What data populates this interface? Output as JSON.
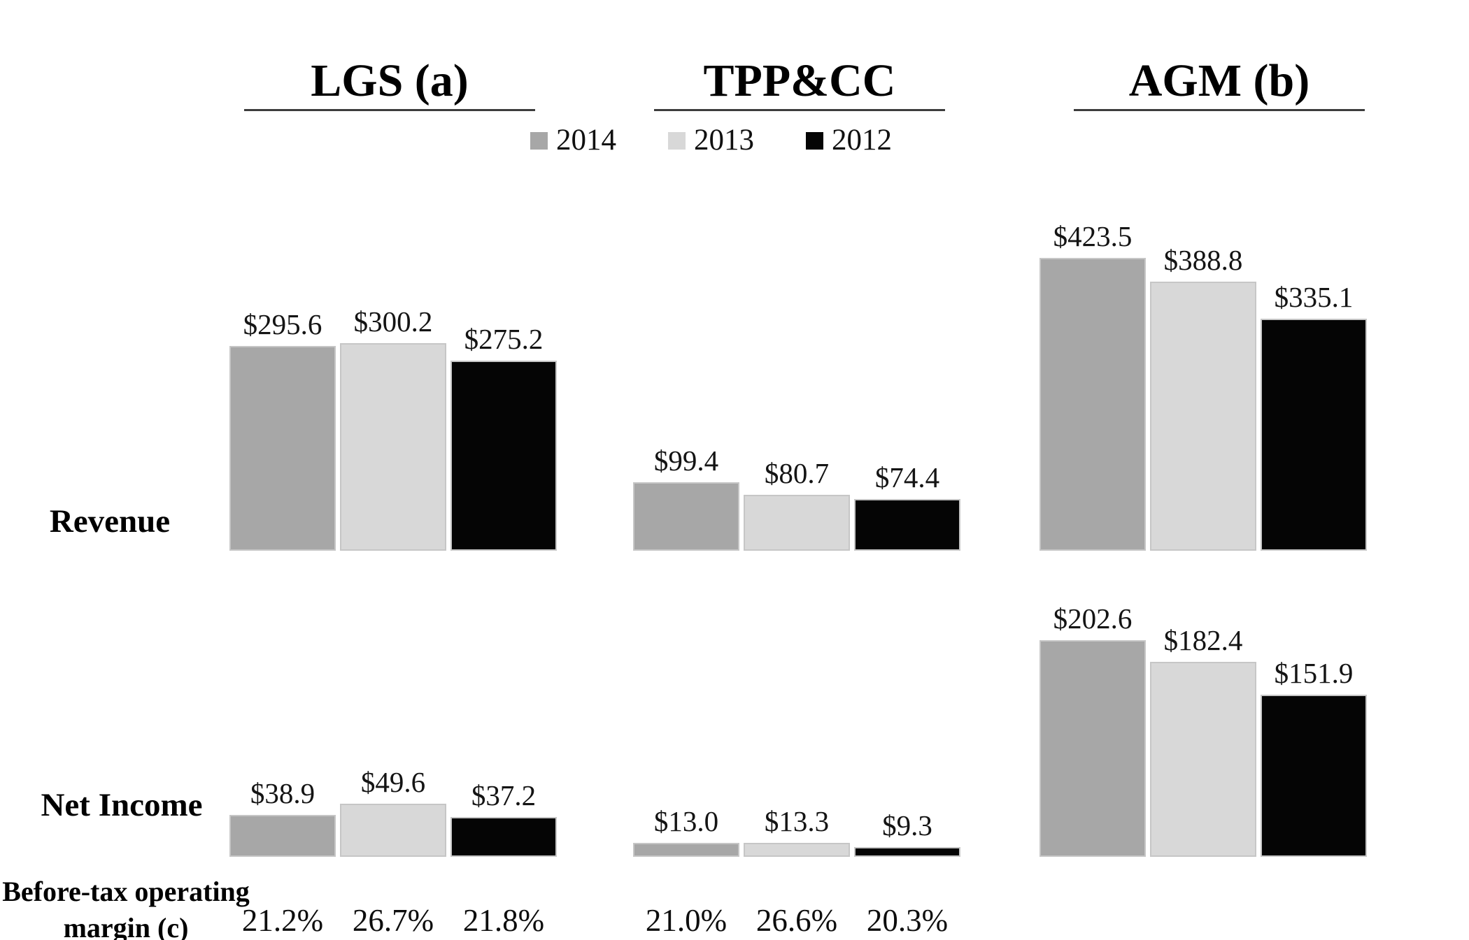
{
  "legend": {
    "items": [
      {
        "label": "2014",
        "color": "#a7a7a7"
      },
      {
        "label": "2013",
        "color": "#d8d8d8"
      },
      {
        "label": "2012",
        "color": "#050505"
      }
    ]
  },
  "row_labels": {
    "revenue": "Revenue",
    "net_income": "Net Income",
    "margin_line1": "Before-tax operating",
    "margin_line2": "margin (c)"
  },
  "chart_data": {
    "type": "bar",
    "title": "",
    "legend_position": "top-center",
    "series": [
      "2014",
      "2013",
      "2012"
    ],
    "series_colors": [
      "#a7a7a7",
      "#d8d8d8",
      "#050505"
    ],
    "series_border_colors": [
      "#c6c6c6",
      "#c6c6c6",
      "#c6c6c6"
    ],
    "row_metrics": [
      "Revenue",
      "Net Income",
      "Before-tax operating margin (c)"
    ],
    "value_prefix": "$",
    "segments": [
      {
        "name": "LGS (a)",
        "revenue": [
          295.6,
          300.2,
          275.2
        ],
        "revenue_labels": [
          "$295.6",
          "$300.2",
          "$275.2"
        ],
        "net_income": [
          38.9,
          49.6,
          37.2
        ],
        "net_income_labels": [
          "$38.9",
          "$49.6",
          "$37.2"
        ],
        "before_tax_operating_margin": [
          "21.2%",
          "26.7%",
          "21.8%"
        ]
      },
      {
        "name": "TPP&CC",
        "revenue": [
          99.4,
          80.7,
          74.4
        ],
        "revenue_labels": [
          "$99.4",
          "$80.7",
          "$74.4"
        ],
        "net_income": [
          13.0,
          13.3,
          9.3
        ],
        "net_income_labels": [
          "$13.0",
          "$13.3",
          "$9.3"
        ],
        "before_tax_operating_margin": [
          "21.0%",
          "26.6%",
          "20.3%"
        ]
      },
      {
        "name": "AGM (b)",
        "revenue": [
          423.5,
          388.8,
          335.1
        ],
        "revenue_labels": [
          "$423.5",
          "$388.8",
          "$335.1"
        ],
        "net_income": [
          202.6,
          182.4,
          151.9
        ],
        "net_income_labels": [
          "$202.6",
          "$182.4",
          "$151.9"
        ],
        "before_tax_operating_margin": []
      }
    ]
  }
}
